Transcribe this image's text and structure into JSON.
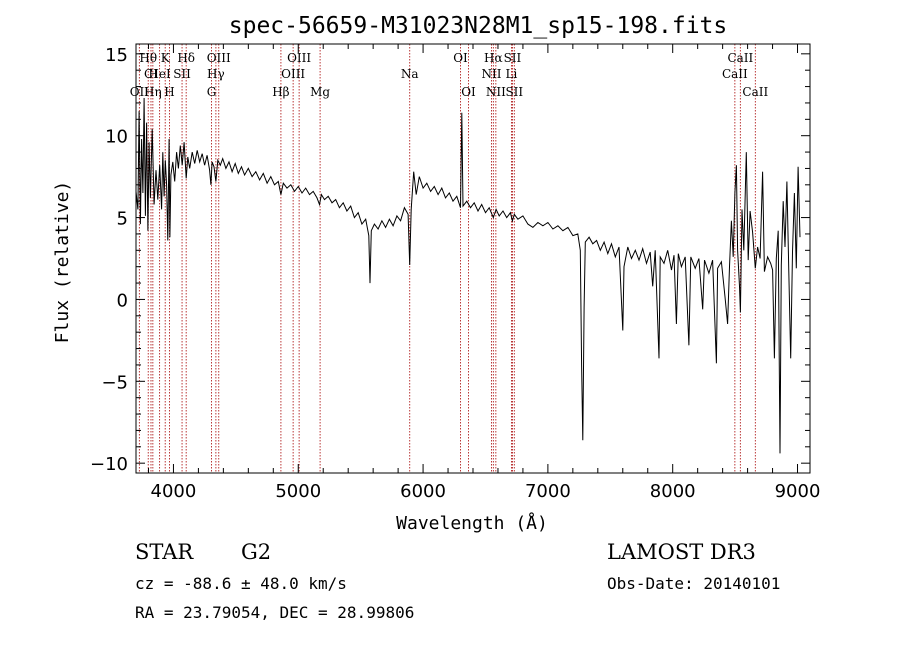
{
  "chart_data": {
    "type": "line",
    "title": "spec-56659-M31023N28M1_sp15-198.fits",
    "xlabel": "Wavelength (Å)",
    "ylabel": "Flux (relative)",
    "xlim": [
      3700,
      9100
    ],
    "ylim": [
      -10.6,
      15.6
    ],
    "xticks": [
      4000,
      5000,
      6000,
      7000,
      8000,
      9000
    ],
    "yticks": [
      -10,
      -5,
      0,
      5,
      10,
      15
    ],
    "spectrum": [
      [
        3700,
        6.6
      ],
      [
        3715,
        5.5
      ],
      [
        3725,
        11.5
      ],
      [
        3735,
        4.6
      ],
      [
        3745,
        9.8
      ],
      [
        3755,
        6.5
      ],
      [
        3765,
        12.3
      ],
      [
        3775,
        5.1
      ],
      [
        3785,
        10.8
      ],
      [
        3795,
        4.2
      ],
      [
        3805,
        9.6
      ],
      [
        3815,
        6.2
      ],
      [
        3830,
        10.4
      ],
      [
        3845,
        5.8
      ],
      [
        3860,
        7.9
      ],
      [
        3875,
        6.1
      ],
      [
        3890,
        8.2
      ],
      [
        3905,
        5.5
      ],
      [
        3915,
        9.0
      ],
      [
        3925,
        6.3
      ],
      [
        3935,
        8.5
      ],
      [
        3945,
        7.0
      ],
      [
        3955,
        3.6
      ],
      [
        3965,
        9.8
      ],
      [
        3972,
        3.8
      ],
      [
        3980,
        7.6
      ],
      [
        3995,
        8.4
      ],
      [
        4010,
        7.2
      ],
      [
        4025,
        9.0
      ],
      [
        4040,
        8.0
      ],
      [
        4055,
        9.4
      ],
      [
        4070,
        8.2
      ],
      [
        4085,
        9.6
      ],
      [
        4102,
        7.4
      ],
      [
        4115,
        8.7
      ],
      [
        4130,
        8.0
      ],
      [
        4150,
        9.0
      ],
      [
        4170,
        8.3
      ],
      [
        4190,
        9.1
      ],
      [
        4210,
        8.4
      ],
      [
        4230,
        8.9
      ],
      [
        4250,
        8.2
      ],
      [
        4270,
        8.8
      ],
      [
        4290,
        7.9
      ],
      [
        4300,
        7.0
      ],
      [
        4310,
        8.4
      ],
      [
        4325,
        8.1
      ],
      [
        4340,
        7.2
      ],
      [
        4355,
        8.5
      ],
      [
        4375,
        8.2
      ],
      [
        4395,
        8.6
      ],
      [
        4420,
        8.0
      ],
      [
        4445,
        8.4
      ],
      [
        4470,
        7.8
      ],
      [
        4495,
        8.3
      ],
      [
        4520,
        7.7
      ],
      [
        4545,
        8.1
      ],
      [
        4570,
        7.6
      ],
      [
        4600,
        8.0
      ],
      [
        4630,
        7.5
      ],
      [
        4660,
        7.8
      ],
      [
        4690,
        7.3
      ],
      [
        4720,
        7.7
      ],
      [
        4750,
        7.1
      ],
      [
        4780,
        7.5
      ],
      [
        4810,
        7.0
      ],
      [
        4840,
        7.2
      ],
      [
        4861,
        6.4
      ],
      [
        4880,
        7.1
      ],
      [
        4910,
        6.8
      ],
      [
        4940,
        7.0
      ],
      [
        4970,
        6.6
      ],
      [
        5000,
        6.9
      ],
      [
        5030,
        6.5
      ],
      [
        5060,
        6.8
      ],
      [
        5090,
        6.4
      ],
      [
        5120,
        6.6
      ],
      [
        5150,
        6.2
      ],
      [
        5170,
        5.8
      ],
      [
        5185,
        6.4
      ],
      [
        5210,
        6.1
      ],
      [
        5240,
        6.3
      ],
      [
        5270,
        5.9
      ],
      [
        5300,
        6.1
      ],
      [
        5330,
        5.6
      ],
      [
        5360,
        5.9
      ],
      [
        5390,
        5.4
      ],
      [
        5420,
        5.7
      ],
      [
        5450,
        5.0
      ],
      [
        5480,
        5.3
      ],
      [
        5510,
        4.6
      ],
      [
        5540,
        4.9
      ],
      [
        5565,
        3.9
      ],
      [
        5575,
        1.0
      ],
      [
        5585,
        4.2
      ],
      [
        5610,
        4.6
      ],
      [
        5640,
        4.3
      ],
      [
        5670,
        4.8
      ],
      [
        5700,
        4.4
      ],
      [
        5730,
        4.9
      ],
      [
        5760,
        4.5
      ],
      [
        5790,
        5.1
      ],
      [
        5820,
        4.8
      ],
      [
        5850,
        5.6
      ],
      [
        5880,
        5.2
      ],
      [
        5893,
        2.1
      ],
      [
        5905,
        5.5
      ],
      [
        5925,
        7.8
      ],
      [
        5945,
        6.4
      ],
      [
        5970,
        7.5
      ],
      [
        6000,
        6.8
      ],
      [
        6030,
        7.1
      ],
      [
        6060,
        6.6
      ],
      [
        6090,
        6.9
      ],
      [
        6120,
        6.4
      ],
      [
        6150,
        6.8
      ],
      [
        6180,
        6.2
      ],
      [
        6210,
        6.5
      ],
      [
        6240,
        6.0
      ],
      [
        6270,
        6.3
      ],
      [
        6300,
        5.6
      ],
      [
        6310,
        11.4
      ],
      [
        6320,
        5.7
      ],
      [
        6350,
        6.0
      ],
      [
        6380,
        5.6
      ],
      [
        6410,
        5.9
      ],
      [
        6440,
        5.4
      ],
      [
        6470,
        5.8
      ],
      [
        6500,
        5.3
      ],
      [
        6530,
        5.6
      ],
      [
        6563,
        5.0
      ],
      [
        6585,
        5.5
      ],
      [
        6610,
        5.1
      ],
      [
        6640,
        5.4
      ],
      [
        6670,
        5.0
      ],
      [
        6700,
        5.3
      ],
      [
        6716,
        4.8
      ],
      [
        6731,
        5.2
      ],
      [
        6760,
        4.9
      ],
      [
        6800,
        5.1
      ],
      [
        6840,
        4.6
      ],
      [
        6880,
        4.4
      ],
      [
        6920,
        4.7
      ],
      [
        6960,
        4.5
      ],
      [
        7000,
        4.7
      ],
      [
        7040,
        4.3
      ],
      [
        7080,
        4.5
      ],
      [
        7120,
        4.2
      ],
      [
        7160,
        4.4
      ],
      [
        7200,
        3.9
      ],
      [
        7240,
        4.0
      ],
      [
        7260,
        3.0
      ],
      [
        7270,
        -4.0
      ],
      [
        7280,
        -8.6
      ],
      [
        7290,
        -0.5
      ],
      [
        7300,
        3.5
      ],
      [
        7330,
        3.8
      ],
      [
        7360,
        3.4
      ],
      [
        7390,
        3.6
      ],
      [
        7420,
        3.0
      ],
      [
        7450,
        3.5
      ],
      [
        7480,
        2.8
      ],
      [
        7510,
        3.4
      ],
      [
        7540,
        2.6
      ],
      [
        7570,
        3.2
      ],
      [
        7600,
        -1.9
      ],
      [
        7610,
        2.0
      ],
      [
        7640,
        3.2
      ],
      [
        7670,
        2.5
      ],
      [
        7700,
        3.0
      ],
      [
        7730,
        2.4
      ],
      [
        7760,
        3.1
      ],
      [
        7790,
        2.2
      ],
      [
        7820,
        2.9
      ],
      [
        7840,
        0.8
      ],
      [
        7860,
        3.0
      ],
      [
        7890,
        -3.6
      ],
      [
        7900,
        2.6
      ],
      [
        7930,
        2.2
      ],
      [
        7960,
        3.0
      ],
      [
        7990,
        1.8
      ],
      [
        8010,
        2.7
      ],
      [
        8030,
        -1.5
      ],
      [
        8045,
        2.8
      ],
      [
        8070,
        2.0
      ],
      [
        8100,
        2.6
      ],
      [
        8130,
        -2.8
      ],
      [
        8145,
        2.6
      ],
      [
        8180,
        1.9
      ],
      [
        8210,
        2.5
      ],
      [
        8240,
        -0.6
      ],
      [
        8255,
        2.4
      ],
      [
        8290,
        1.6
      ],
      [
        8320,
        2.4
      ],
      [
        8350,
        -3.9
      ],
      [
        8360,
        1.9
      ],
      [
        8390,
        2.3
      ],
      [
        8420,
        0.1
      ],
      [
        8440,
        -1.5
      ],
      [
        8455,
        2.0
      ],
      [
        8470,
        4.8
      ],
      [
        8485,
        2.6
      ],
      [
        8498,
        6.5
      ],
      [
        8510,
        8.2
      ],
      [
        8520,
        3.0
      ],
      [
        8535,
        0.8
      ],
      [
        8542,
        -0.8
      ],
      [
        8555,
        5.5
      ],
      [
        8570,
        3.0
      ],
      [
        8590,
        9.0
      ],
      [
        8605,
        2.4
      ],
      [
        8620,
        5.4
      ],
      [
        8640,
        4.1
      ],
      [
        8662,
        1.9
      ],
      [
        8680,
        3.2
      ],
      [
        8700,
        2.5
      ],
      [
        8720,
        7.8
      ],
      [
        8735,
        1.7
      ],
      [
        8760,
        2.6
      ],
      [
        8785,
        2.2
      ],
      [
        8800,
        1.8
      ],
      [
        8815,
        -3.6
      ],
      [
        8830,
        2.5
      ],
      [
        8845,
        4.2
      ],
      [
        8860,
        -9.4
      ],
      [
        8870,
        2.1
      ],
      [
        8885,
        6.0
      ],
      [
        8900,
        3.2
      ],
      [
        8915,
        7.2
      ],
      [
        8930,
        1.7
      ],
      [
        8945,
        -3.6
      ],
      [
        8960,
        2.9
      ],
      [
        8975,
        6.5
      ],
      [
        8990,
        1.9
      ],
      [
        9005,
        8.1
      ],
      [
        9020,
        3.8
      ]
    ],
    "lines": [
      {
        "name": "OII",
        "wl": 3727,
        "row": 3
      },
      {
        "name": "Hθ",
        "wl": 3798,
        "row": 1
      },
      {
        "name": "CI",
        "wl": 3820,
        "row": 2
      },
      {
        "name": "Hη",
        "wl": 3835,
        "row": 3
      },
      {
        "name": "HeI",
        "wl": 3889,
        "row": 2
      },
      {
        "name": "K",
        "wl": 3934,
        "row": 1
      },
      {
        "name": "H",
        "wl": 3968,
        "row": 3
      },
      {
        "name": "SII",
        "wl": 4069,
        "row": 2
      },
      {
        "name": "Hδ",
        "wl": 4102,
        "row": 1
      },
      {
        "name": "G",
        "wl": 4305,
        "row": 3
      },
      {
        "name": "Hγ",
        "wl": 4340,
        "row": 2
      },
      {
        "name": "OIII",
        "wl": 4363,
        "row": 1
      },
      {
        "name": "Hβ",
        "wl": 4861,
        "row": 3
      },
      {
        "name": "OIII",
        "wl": 4959,
        "row": 2
      },
      {
        "name": "OIII",
        "wl": 5007,
        "row": 1
      },
      {
        "name": "Mg",
        "wl": 5175,
        "row": 3
      },
      {
        "name": "Na",
        "wl": 5893,
        "row": 2
      },
      {
        "name": "OI",
        "wl": 6300,
        "row": 1
      },
      {
        "name": "OI",
        "wl": 6364,
        "row": 3
      },
      {
        "name": "NII",
        "wl": 6548,
        "row": 2
      },
      {
        "name": "Hα",
        "wl": 6563,
        "row": 1
      },
      {
        "name": "NII",
        "wl": 6583,
        "row": 3
      },
      {
        "name": "Li",
        "wl": 6708,
        "row": 2
      },
      {
        "name": "SII",
        "wl": 6716,
        "row": 1
      },
      {
        "name": "SII",
        "wl": 6731,
        "row": 3
      },
      {
        "name": "CaII",
        "wl": 8498,
        "row": 2
      },
      {
        "name": "CaII",
        "wl": 8542,
        "row": 1
      },
      {
        "name": "CaII",
        "wl": 8662,
        "row": 3
      }
    ],
    "colors": {
      "spectrum": "#000000",
      "lines": "#b22222",
      "axes": "#000000"
    }
  },
  "info": {
    "class": "STAR",
    "subclass": "G2",
    "survey": "LAMOST DR3",
    "cz": "cz = -88.6 ± 48.0 km/s",
    "obs_date": "Obs-Date: 20140101",
    "radec": "RA =  23.79054, DEC =  28.99806"
  }
}
